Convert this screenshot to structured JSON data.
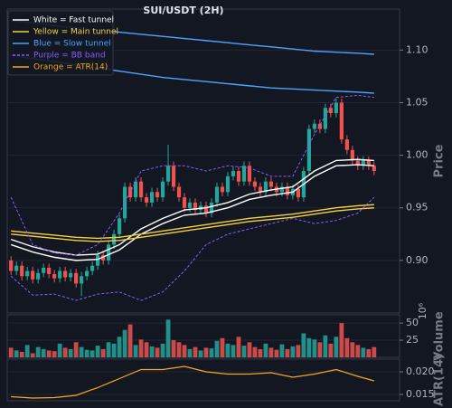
{
  "chart_data": [
    {
      "type": "candlestick",
      "title": "SUI/USDT (2H)",
      "y_label": "Price",
      "xlim": [
        -0.7,
        71.7
      ],
      "ylim": [
        0.85,
        1.139
      ],
      "yticks": [
        {
          "value": 0.9,
          "label": "0.90"
        },
        0.95,
        {
          "value": 1.0,
          "label": "1.00"
        },
        1.05,
        {
          "value": 1.1,
          "label": "1.10"
        }
      ],
      "grid": true,
      "legend": "upper left",
      "up_color": "#26a69a",
      "down_color": "#ef5350",
      "open": [
        0.9,
        0.89,
        0.895,
        0.885,
        0.89,
        0.882,
        0.888,
        0.893,
        0.887,
        0.883,
        0.89,
        0.884,
        0.888,
        0.878,
        0.885,
        0.89,
        0.895,
        0.905,
        0.9,
        0.915,
        0.925,
        0.94,
        0.97,
        0.96,
        0.975,
        0.96,
        0.955,
        0.965,
        0.96,
        0.975,
        0.99,
        0.97,
        0.96,
        0.95,
        0.955,
        0.948,
        0.952,
        0.945,
        0.955,
        0.97,
        0.965,
        0.98,
        0.985,
        0.975,
        0.99,
        0.975,
        0.97,
        0.965,
        0.975,
        0.97,
        0.965,
        0.97,
        0.962,
        0.968,
        0.96,
        0.985,
        1.025,
        1.03,
        1.025,
        1.045,
        1.04,
        1.05,
        1.015,
        1.005,
        0.995,
        0.99,
        0.995,
        0.99
      ],
      "high": [
        0.904,
        0.899,
        0.899,
        0.894,
        0.894,
        0.892,
        0.897,
        0.897,
        0.891,
        0.894,
        0.894,
        0.892,
        0.892,
        0.889,
        0.894,
        0.899,
        0.909,
        0.909,
        0.919,
        0.929,
        0.944,
        0.974,
        0.974,
        0.979,
        0.979,
        0.964,
        0.969,
        0.969,
        0.979,
        1.01,
        0.994,
        0.974,
        0.964,
        0.959,
        0.959,
        0.956,
        0.956,
        0.959,
        0.974,
        0.974,
        0.984,
        0.989,
        0.989,
        0.994,
        0.994,
        0.979,
        0.974,
        0.979,
        0.979,
        0.974,
        0.974,
        0.974,
        0.972,
        0.972,
        0.989,
        1.029,
        1.034,
        1.034,
        1.049,
        1.049,
        1.054,
        1.054,
        1.019,
        1.009,
        0.999,
        0.999,
        0.999,
        0.994
      ],
      "low": [
        0.886,
        0.886,
        0.881,
        0.881,
        0.878,
        0.878,
        0.884,
        0.883,
        0.879,
        0.879,
        0.88,
        0.88,
        0.874,
        0.866,
        0.881,
        0.886,
        0.891,
        0.896,
        0.896,
        0.911,
        0.921,
        0.936,
        0.956,
        0.956,
        0.956,
        0.951,
        0.951,
        0.956,
        0.956,
        0.971,
        0.966,
        0.956,
        0.946,
        0.946,
        0.944,
        0.944,
        0.941,
        0.941,
        0.951,
        0.961,
        0.961,
        0.976,
        0.971,
        0.971,
        0.971,
        0.966,
        0.961,
        0.961,
        0.966,
        0.961,
        0.961,
        0.958,
        0.958,
        0.956,
        0.956,
        0.981,
        1.021,
        1.021,
        1.021,
        1.036,
        1.036,
        1.011,
        1.001,
        0.991,
        0.986,
        0.986,
        0.986,
        0.981
      ],
      "close": [
        0.89,
        0.895,
        0.885,
        0.89,
        0.882,
        0.888,
        0.893,
        0.887,
        0.883,
        0.89,
        0.884,
        0.888,
        0.878,
        0.885,
        0.89,
        0.895,
        0.905,
        0.9,
        0.915,
        0.925,
        0.94,
        0.97,
        0.96,
        0.975,
        0.96,
        0.955,
        0.965,
        0.96,
        0.975,
        0.99,
        0.97,
        0.96,
        0.95,
        0.955,
        0.948,
        0.952,
        0.945,
        0.955,
        0.97,
        0.965,
        0.98,
        0.985,
        0.975,
        0.99,
        0.975,
        0.97,
        0.965,
        0.975,
        0.97,
        0.965,
        0.97,
        0.962,
        0.968,
        0.96,
        0.985,
        1.025,
        1.03,
        1.025,
        1.045,
        1.04,
        1.05,
        1.015,
        1.005,
        0.995,
        0.99,
        0.995,
        0.99,
        0.985
      ],
      "series": [
        {
          "name": "White = Fast tunnel",
          "color": "#ffffff",
          "style": "solid",
          "x": [
            0,
            4,
            8,
            12,
            16,
            20,
            24,
            28,
            32,
            36,
            40,
            44,
            48,
            52,
            56,
            60,
            64,
            67
          ],
          "upper": [
            0.92,
            0.913,
            0.908,
            0.905,
            0.906,
            0.915,
            0.93,
            0.94,
            0.948,
            0.95,
            0.955,
            0.963,
            0.967,
            0.97,
            0.985,
            0.995,
            0.996,
            0.995
          ],
          "lower": [
            0.915,
            0.908,
            0.903,
            0.9,
            0.901,
            0.91,
            0.925,
            0.935,
            0.943,
            0.945,
            0.95,
            0.958,
            0.962,
            0.965,
            0.98,
            0.99,
            0.991,
            0.99
          ]
        },
        {
          "name": "Yellow = Main tunnel",
          "color": "#f5d142",
          "style": "solid",
          "x": [
            0,
            4,
            8,
            12,
            16,
            20,
            24,
            28,
            32,
            36,
            40,
            44,
            48,
            52,
            56,
            60,
            64,
            67
          ],
          "upper": [
            0.928,
            0.926,
            0.924,
            0.922,
            0.921,
            0.922,
            0.925,
            0.928,
            0.931,
            0.934,
            0.937,
            0.94,
            0.942,
            0.944,
            0.947,
            0.95,
            0.952,
            0.953
          ],
          "lower": [
            0.925,
            0.923,
            0.921,
            0.919,
            0.918,
            0.919,
            0.922,
            0.925,
            0.928,
            0.931,
            0.934,
            0.937,
            0.939,
            0.941,
            0.944,
            0.947,
            0.949,
            0.95
          ]
        },
        {
          "name": "Blue = Slow tunnel",
          "color": "#4da3ff",
          "style": "solid",
          "x": [
            0,
            4,
            8,
            12,
            16,
            20,
            24,
            28,
            32,
            36,
            40,
            44,
            48,
            52,
            56,
            60,
            64,
            67
          ],
          "upper": [
            1.128,
            1.126,
            1.123,
            1.121,
            1.119,
            1.117,
            1.115,
            1.113,
            1.111,
            1.109,
            1.107,
            1.105,
            1.103,
            1.101,
            1.099,
            1.098,
            1.097,
            1.096
          ],
          "lower": [
            1.095,
            1.092,
            1.089,
            1.086,
            1.083,
            1.08,
            1.077,
            1.074,
            1.072,
            1.07,
            1.068,
            1.066,
            1.064,
            1.063,
            1.062,
            1.061,
            1.06,
            1.059
          ]
        },
        {
          "name": "Purple = BB band",
          "color": "#8b5cf6",
          "style": "dashed",
          "x": [
            0,
            4,
            8,
            12,
            16,
            20,
            24,
            28,
            32,
            36,
            40,
            44,
            48,
            52,
            56,
            60,
            64,
            67
          ],
          "upper": [
            0.96,
            0.915,
            0.907,
            0.905,
            0.915,
            0.945,
            0.985,
            0.99,
            0.99,
            0.985,
            0.99,
            0.988,
            0.98,
            0.98,
            1.02,
            1.055,
            1.057,
            1.055
          ],
          "lower": [
            0.885,
            0.867,
            0.868,
            0.862,
            0.868,
            0.87,
            0.862,
            0.87,
            0.89,
            0.915,
            0.925,
            0.93,
            0.935,
            0.94,
            0.935,
            0.938,
            0.945,
            0.96
          ]
        }
      ]
    },
    {
      "type": "bar",
      "y_label": "Volume",
      "offset_label": "10⁶",
      "ylim": [
        0,
        62
      ],
      "yticks": [
        25,
        50
      ],
      "grid": true,
      "values": [
        14,
        10,
        8,
        18,
        6,
        15,
        12,
        10,
        9,
        20,
        14,
        12,
        22,
        15,
        11,
        10,
        17,
        12,
        22,
        20,
        30,
        40,
        48,
        18,
        26,
        22,
        16,
        14,
        20,
        55,
        25,
        22,
        18,
        12,
        15,
        10,
        14,
        13,
        24,
        28,
        20,
        18,
        30,
        17,
        22,
        15,
        12,
        20,
        14,
        11,
        19,
        12,
        16,
        18,
        35,
        28,
        26,
        22,
        32,
        20,
        30,
        50,
        28,
        22,
        18,
        14,
        12,
        15
      ]
    },
    {
      "type": "line",
      "y_label": "ATR(14)",
      "ylim": [
        0.0136,
        0.0228
      ],
      "yticks": [
        {
          "value": 0.015,
          "label": "0.015"
        },
        {
          "value": 0.02,
          "label": "0.020"
        }
      ],
      "grid": true,
      "series": [
        {
          "name": "Orange = ATR(14)",
          "color": "#f5a623",
          "x": [
            0,
            4,
            8,
            12,
            16,
            20,
            24,
            28,
            32,
            36,
            40,
            44,
            48,
            52,
            56,
            60,
            64,
            67
          ],
          "values": [
            0.0145,
            0.0142,
            0.0143,
            0.0148,
            0.0165,
            0.0185,
            0.0205,
            0.0205,
            0.0212,
            0.02,
            0.0195,
            0.0195,
            0.0198,
            0.0188,
            0.0195,
            0.0205,
            0.019,
            0.018
          ]
        }
      ]
    }
  ]
}
